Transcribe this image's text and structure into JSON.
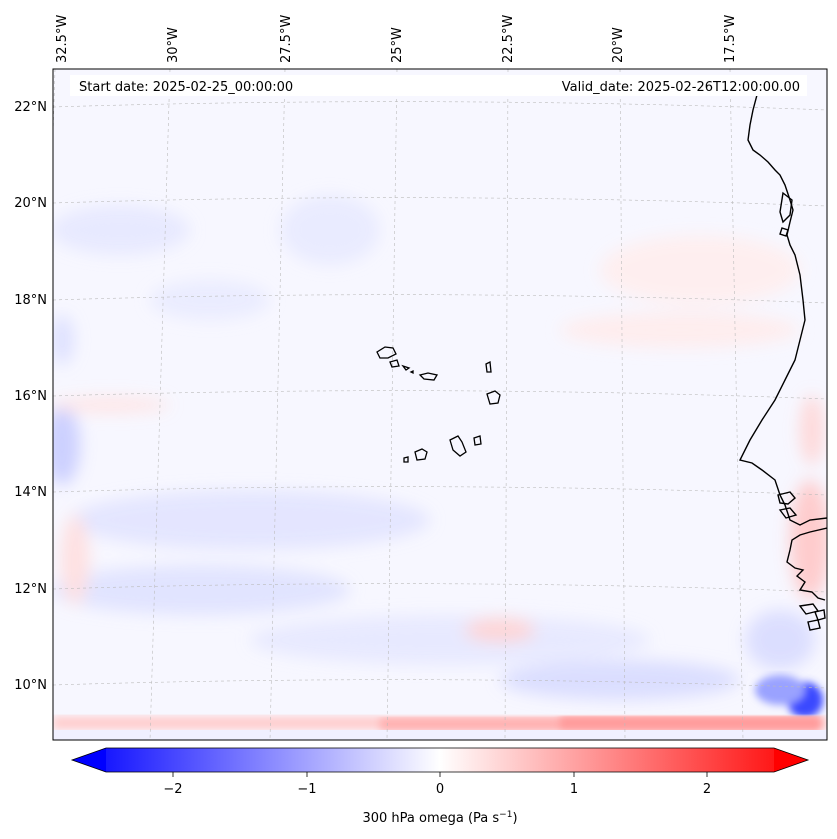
{
  "header": {
    "start_date": "Start date: 2025-02-25_00:00:00",
    "valid_date": "Valid_date: 2025-02-26T12:00:00.00"
  },
  "map": {
    "longitude_labels": [
      "32.5°W",
      "30°W",
      "27.5°W",
      "25°W",
      "22.5°W",
      "20°W",
      "17.5°W"
    ],
    "latitude_labels": [
      "22°N",
      "20°N",
      "18°N",
      "16°N",
      "14°N",
      "12°N",
      "10°N"
    ]
  },
  "colorbar": {
    "label": "300 hPa omega (Pa s",
    "label_exp": "−1",
    "label_close": ")",
    "ticks": [
      "−2",
      "−1",
      "0",
      "1",
      "2"
    ],
    "colors": {
      "negative": "#0000ff",
      "neutral": "#ffffff",
      "positive": "#ff0000"
    }
  }
}
